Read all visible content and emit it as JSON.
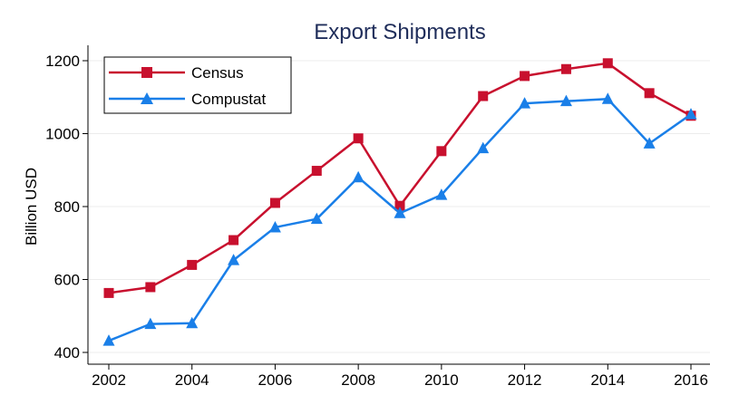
{
  "chart_data": {
    "type": "line",
    "title": "Export Shipments",
    "xlabel": "",
    "ylabel": "Billion USD",
    "x": [
      2002,
      2003,
      2004,
      2005,
      2006,
      2007,
      2008,
      2009,
      2010,
      2011,
      2012,
      2013,
      2014,
      2015,
      2016
    ],
    "xticks": [
      2002,
      2004,
      2006,
      2008,
      2010,
      2012,
      2014,
      2016
    ],
    "yticks": [
      400,
      600,
      800,
      1000,
      1200
    ],
    "xlim": [
      2002,
      2016
    ],
    "ylim": [
      400,
      1200
    ],
    "grid": true,
    "legend_position": "top-left",
    "series": [
      {
        "name": "Census",
        "color": "#c8102e",
        "marker": "square",
        "values": [
          563,
          579,
          640,
          708,
          810,
          898,
          987,
          802,
          952,
          1103,
          1158,
          1177,
          1193,
          1111,
          1049
        ]
      },
      {
        "name": "Compustat",
        "color": "#1a7fe8",
        "marker": "triangle",
        "values": [
          432,
          478,
          480,
          653,
          743,
          766,
          880,
          782,
          832,
          960,
          1083,
          1089,
          1095,
          973,
          1053
        ]
      }
    ]
  }
}
